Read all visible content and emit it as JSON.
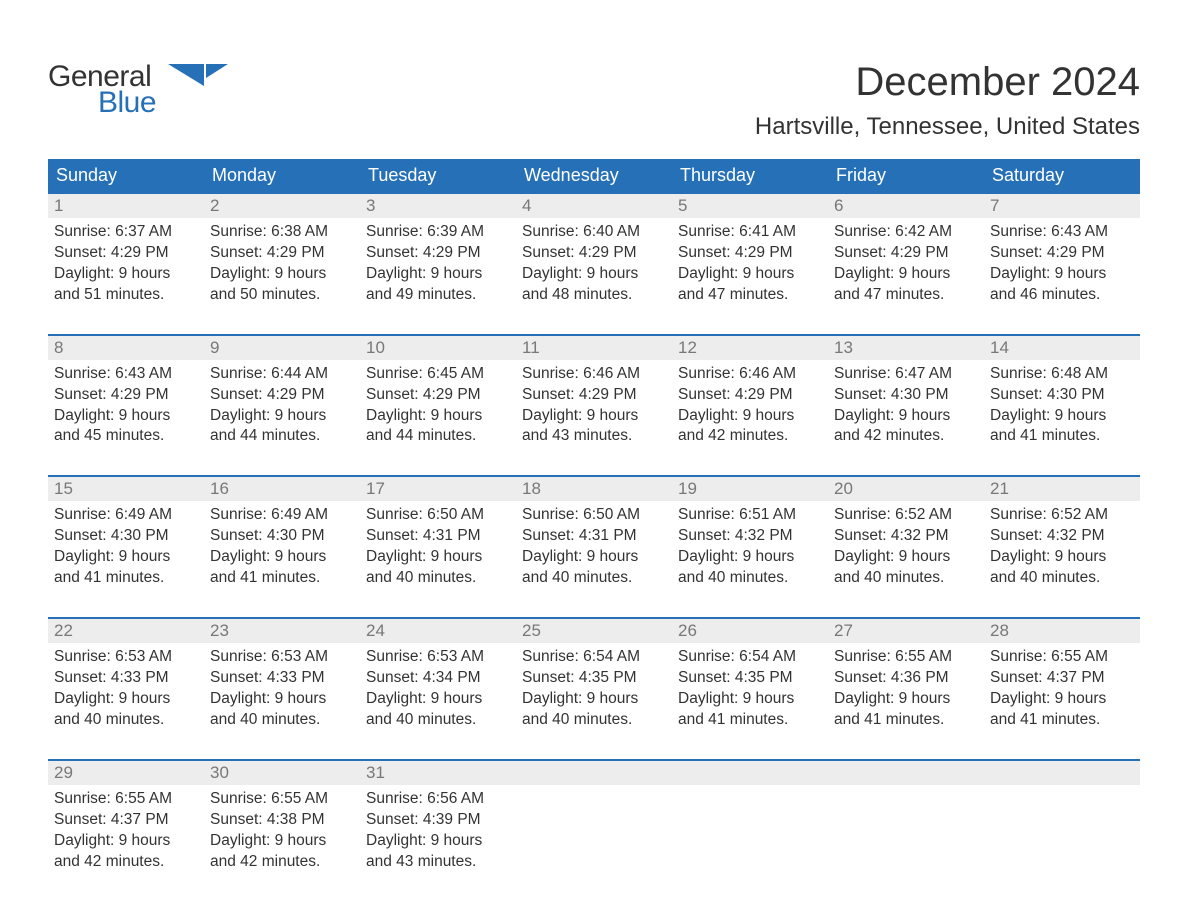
{
  "logo": {
    "line1": "General",
    "line2": "Blue"
  },
  "title": "December 2024",
  "subtitle": "Hartsville, Tennessee, United States",
  "headers": [
    "Sunday",
    "Monday",
    "Tuesday",
    "Wednesday",
    "Thursday",
    "Friday",
    "Saturday"
  ],
  "colors": {
    "header_bg": "#2670b7",
    "header_text": "#ffffff",
    "daynum_bg": "#ededed",
    "daynum_text": "#787878",
    "body_text": "#333333",
    "logo_blue": "#2670b7",
    "page_bg": "#ffffff"
  },
  "typography": {
    "title_fontsize": 40,
    "subtitle_fontsize": 24,
    "header_fontsize": 18,
    "daynum_fontsize": 17,
    "cell_fontsize": 15.5,
    "logo_fontsize": 30
  },
  "layout": {
    "columns": 7,
    "rows": 5
  },
  "weeks": [
    [
      {
        "n": "1",
        "sr": "Sunrise: 6:37 AM",
        "ss": "Sunset: 4:29 PM",
        "d1": "Daylight: 9 hours",
        "d2": "and 51 minutes."
      },
      {
        "n": "2",
        "sr": "Sunrise: 6:38 AM",
        "ss": "Sunset: 4:29 PM",
        "d1": "Daylight: 9 hours",
        "d2": "and 50 minutes."
      },
      {
        "n": "3",
        "sr": "Sunrise: 6:39 AM",
        "ss": "Sunset: 4:29 PM",
        "d1": "Daylight: 9 hours",
        "d2": "and 49 minutes."
      },
      {
        "n": "4",
        "sr": "Sunrise: 6:40 AM",
        "ss": "Sunset: 4:29 PM",
        "d1": "Daylight: 9 hours",
        "d2": "and 48 minutes."
      },
      {
        "n": "5",
        "sr": "Sunrise: 6:41 AM",
        "ss": "Sunset: 4:29 PM",
        "d1": "Daylight: 9 hours",
        "d2": "and 47 minutes."
      },
      {
        "n": "6",
        "sr": "Sunrise: 6:42 AM",
        "ss": "Sunset: 4:29 PM",
        "d1": "Daylight: 9 hours",
        "d2": "and 47 minutes."
      },
      {
        "n": "7",
        "sr": "Sunrise: 6:43 AM",
        "ss": "Sunset: 4:29 PM",
        "d1": "Daylight: 9 hours",
        "d2": "and 46 minutes."
      }
    ],
    [
      {
        "n": "8",
        "sr": "Sunrise: 6:43 AM",
        "ss": "Sunset: 4:29 PM",
        "d1": "Daylight: 9 hours",
        "d2": "and 45 minutes."
      },
      {
        "n": "9",
        "sr": "Sunrise: 6:44 AM",
        "ss": "Sunset: 4:29 PM",
        "d1": "Daylight: 9 hours",
        "d2": "and 44 minutes."
      },
      {
        "n": "10",
        "sr": "Sunrise: 6:45 AM",
        "ss": "Sunset: 4:29 PM",
        "d1": "Daylight: 9 hours",
        "d2": "and 44 minutes."
      },
      {
        "n": "11",
        "sr": "Sunrise: 6:46 AM",
        "ss": "Sunset: 4:29 PM",
        "d1": "Daylight: 9 hours",
        "d2": "and 43 minutes."
      },
      {
        "n": "12",
        "sr": "Sunrise: 6:46 AM",
        "ss": "Sunset: 4:29 PM",
        "d1": "Daylight: 9 hours",
        "d2": "and 42 minutes."
      },
      {
        "n": "13",
        "sr": "Sunrise: 6:47 AM",
        "ss": "Sunset: 4:30 PM",
        "d1": "Daylight: 9 hours",
        "d2": "and 42 minutes."
      },
      {
        "n": "14",
        "sr": "Sunrise: 6:48 AM",
        "ss": "Sunset: 4:30 PM",
        "d1": "Daylight: 9 hours",
        "d2": "and 41 minutes."
      }
    ],
    [
      {
        "n": "15",
        "sr": "Sunrise: 6:49 AM",
        "ss": "Sunset: 4:30 PM",
        "d1": "Daylight: 9 hours",
        "d2": "and 41 minutes."
      },
      {
        "n": "16",
        "sr": "Sunrise: 6:49 AM",
        "ss": "Sunset: 4:30 PM",
        "d1": "Daylight: 9 hours",
        "d2": "and 41 minutes."
      },
      {
        "n": "17",
        "sr": "Sunrise: 6:50 AM",
        "ss": "Sunset: 4:31 PM",
        "d1": "Daylight: 9 hours",
        "d2": "and 40 minutes."
      },
      {
        "n": "18",
        "sr": "Sunrise: 6:50 AM",
        "ss": "Sunset: 4:31 PM",
        "d1": "Daylight: 9 hours",
        "d2": "and 40 minutes."
      },
      {
        "n": "19",
        "sr": "Sunrise: 6:51 AM",
        "ss": "Sunset: 4:32 PM",
        "d1": "Daylight: 9 hours",
        "d2": "and 40 minutes."
      },
      {
        "n": "20",
        "sr": "Sunrise: 6:52 AM",
        "ss": "Sunset: 4:32 PM",
        "d1": "Daylight: 9 hours",
        "d2": "and 40 minutes."
      },
      {
        "n": "21",
        "sr": "Sunrise: 6:52 AM",
        "ss": "Sunset: 4:32 PM",
        "d1": "Daylight: 9 hours",
        "d2": "and 40 minutes."
      }
    ],
    [
      {
        "n": "22",
        "sr": "Sunrise: 6:53 AM",
        "ss": "Sunset: 4:33 PM",
        "d1": "Daylight: 9 hours",
        "d2": "and 40 minutes."
      },
      {
        "n": "23",
        "sr": "Sunrise: 6:53 AM",
        "ss": "Sunset: 4:33 PM",
        "d1": "Daylight: 9 hours",
        "d2": "and 40 minutes."
      },
      {
        "n": "24",
        "sr": "Sunrise: 6:53 AM",
        "ss": "Sunset: 4:34 PM",
        "d1": "Daylight: 9 hours",
        "d2": "and 40 minutes."
      },
      {
        "n": "25",
        "sr": "Sunrise: 6:54 AM",
        "ss": "Sunset: 4:35 PM",
        "d1": "Daylight: 9 hours",
        "d2": "and 40 minutes."
      },
      {
        "n": "26",
        "sr": "Sunrise: 6:54 AM",
        "ss": "Sunset: 4:35 PM",
        "d1": "Daylight: 9 hours",
        "d2": "and 41 minutes."
      },
      {
        "n": "27",
        "sr": "Sunrise: 6:55 AM",
        "ss": "Sunset: 4:36 PM",
        "d1": "Daylight: 9 hours",
        "d2": "and 41 minutes."
      },
      {
        "n": "28",
        "sr": "Sunrise: 6:55 AM",
        "ss": "Sunset: 4:37 PM",
        "d1": "Daylight: 9 hours",
        "d2": "and 41 minutes."
      }
    ],
    [
      {
        "n": "29",
        "sr": "Sunrise: 6:55 AM",
        "ss": "Sunset: 4:37 PM",
        "d1": "Daylight: 9 hours",
        "d2": "and 42 minutes."
      },
      {
        "n": "30",
        "sr": "Sunrise: 6:55 AM",
        "ss": "Sunset: 4:38 PM",
        "d1": "Daylight: 9 hours",
        "d2": "and 42 minutes."
      },
      {
        "n": "31",
        "sr": "Sunrise: 6:56 AM",
        "ss": "Sunset: 4:39 PM",
        "d1": "Daylight: 9 hours",
        "d2": "and 43 minutes."
      },
      null,
      null,
      null,
      null
    ]
  ]
}
